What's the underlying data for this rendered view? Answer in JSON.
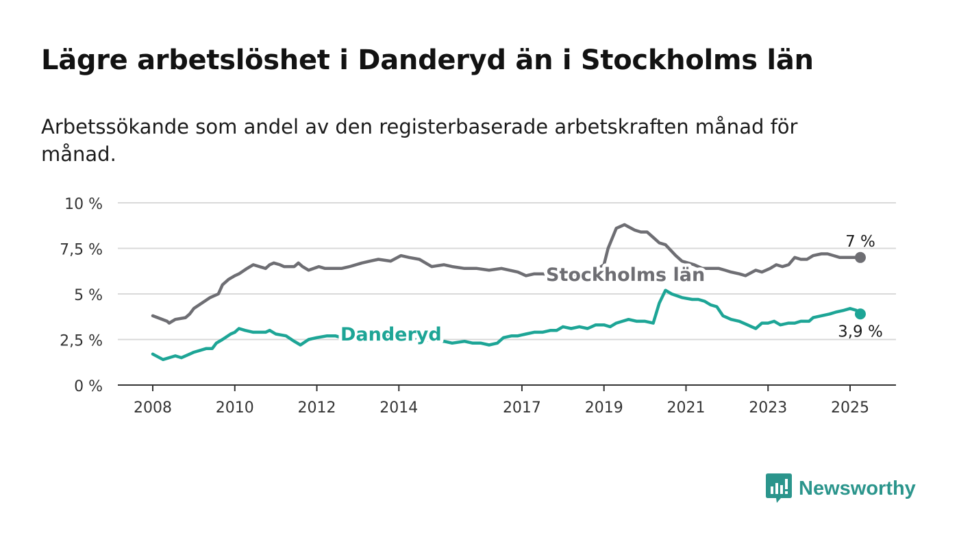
{
  "title": "Lägre arbetslöshet i Danderyd än i Stockholms län",
  "subtitle": "Arbetssökande som andel av den registerbaserade arbetskraften månad för månad.",
  "brand": {
    "name": "Newsworthy"
  },
  "colors": {
    "stockholm": "#6e6e73",
    "danderyd": "#1da596",
    "grid": "#d9d9d9",
    "axis": "#333333"
  },
  "chart_data": {
    "type": "line",
    "title": "Lägre arbetslöshet i Danderyd än i Stockholms län",
    "subtitle": "Arbetssökande som andel av den registerbaserade arbetskraften månad för månad.",
    "xlabel": "",
    "ylabel": "",
    "ylim": [
      0,
      10
    ],
    "xlim": [
      2007.25,
      2026.1
    ],
    "yticks": [
      0,
      2.5,
      5,
      7.5,
      10
    ],
    "ytick_labels": [
      "0 %",
      "2,5 %",
      "5 %",
      "7,5 %",
      "10 %"
    ],
    "xticks": [
      2008,
      2010,
      2012,
      2014,
      2017,
      2019,
      2021,
      2023,
      2025
    ],
    "xtick_labels": [
      "2008",
      "2010",
      "2012",
      "2014",
      "2017",
      "2019",
      "2021",
      "2023",
      "2025"
    ],
    "grid": true,
    "legend": "inline labels",
    "series": [
      {
        "name": "Stockholms län",
        "end_label": "7 %",
        "x": [
          2008.0,
          2008.35,
          2008.4,
          2008.55,
          2008.8,
          2008.9,
          2009.0,
          2009.4,
          2009.6,
          2009.7,
          2009.85,
          2010.0,
          2010.1,
          2010.3,
          2010.45,
          2010.75,
          2010.85,
          2010.95,
          2011.1,
          2011.2,
          2011.45,
          2011.55,
          2011.65,
          2011.8,
          2012.05,
          2012.2,
          2012.4,
          2012.6,
          2012.8,
          2013.1,
          2013.3,
          2013.5,
          2013.8,
          2014.05,
          2014.25,
          2014.5,
          2014.8,
          2015.1,
          2015.3,
          2015.6,
          2015.9,
          2016.2,
          2016.5,
          2016.7,
          2016.9,
          2017.1,
          2017.3,
          2017.5,
          2017.8,
          2017.95,
          2018.1,
          2018.25,
          2018.4,
          2018.5,
          2018.65,
          2019.0,
          2019.1,
          2019.3,
          2019.5,
          2019.75,
          2019.9,
          2020.05,
          2020.2,
          2020.35,
          2020.5,
          2020.75,
          2020.9,
          2021.2,
          2021.4,
          2021.6,
          2021.8,
          2021.95,
          2022.1,
          2022.3,
          2022.45,
          2022.7,
          2022.85,
          2023.05,
          2023.2,
          2023.35,
          2023.5,
          2023.65,
          2023.8,
          2023.95,
          2024.1,
          2024.3,
          2024.45,
          2024.6,
          2024.75,
          2025.0,
          2025.15,
          2025.25
        ],
        "y": [
          3.8,
          3.5,
          3.4,
          3.6,
          3.7,
          3.9,
          4.2,
          4.8,
          5.0,
          5.5,
          5.8,
          6.0,
          6.1,
          6.4,
          6.6,
          6.4,
          6.6,
          6.7,
          6.6,
          6.5,
          6.5,
          6.7,
          6.5,
          6.3,
          6.5,
          6.4,
          6.4,
          6.4,
          6.5,
          6.7,
          6.8,
          6.9,
          6.8,
          7.1,
          7.0,
          6.9,
          6.5,
          6.6,
          6.5,
          6.4,
          6.4,
          6.3,
          6.4,
          6.3,
          6.2,
          6.0,
          6.1,
          6.1,
          6.0,
          6.1,
          6.0,
          6.1,
          6.0,
          6.1,
          6.1,
          6.6,
          7.5,
          8.6,
          8.8,
          8.5,
          8.4,
          8.4,
          8.1,
          7.8,
          7.7,
          7.1,
          6.8,
          6.6,
          6.4,
          6.4,
          6.4,
          6.3,
          6.2,
          6.1,
          6.0,
          6.3,
          6.2,
          6.4,
          6.6,
          6.5,
          6.6,
          7.0,
          6.9,
          6.9,
          7.1,
          7.2,
          7.2,
          7.1,
          7.0,
          7.0,
          7.0,
          7.0
        ]
      },
      {
        "name": "Danderyd",
        "end_label": "3,9 %",
        "x": [
          2008.0,
          2008.25,
          2008.55,
          2008.7,
          2008.9,
          2009.0,
          2009.3,
          2009.45,
          2009.55,
          2009.7,
          2009.9,
          2010.0,
          2010.1,
          2010.25,
          2010.45,
          2010.75,
          2010.85,
          2011.0,
          2011.25,
          2011.45,
          2011.6,
          2011.8,
          2012.0,
          2012.25,
          2012.45,
          2012.6,
          2012.8,
          2013.1,
          2013.35,
          2013.6,
          2013.9,
          2014.2,
          2014.6,
          2014.9,
          2015.1,
          2015.3,
          2015.6,
          2015.8,
          2016.0,
          2016.2,
          2016.4,
          2016.55,
          2016.75,
          2016.9,
          2017.1,
          2017.3,
          2017.5,
          2017.7,
          2017.85,
          2018.0,
          2018.2,
          2018.4,
          2018.6,
          2018.8,
          2019.0,
          2019.15,
          2019.3,
          2019.45,
          2019.6,
          2019.8,
          2020.0,
          2020.2,
          2020.35,
          2020.5,
          2020.65,
          2020.9,
          2021.15,
          2021.3,
          2021.45,
          2021.6,
          2021.75,
          2021.9,
          2022.1,
          2022.3,
          2022.5,
          2022.6,
          2022.7,
          2022.85,
          2023.0,
          2023.15,
          2023.3,
          2023.5,
          2023.65,
          2023.8,
          2024.0,
          2024.1,
          2024.3,
          2024.5,
          2024.65,
          2024.85,
          2025.0,
          2025.15,
          2025.25
        ],
        "y": [
          1.7,
          1.4,
          1.6,
          1.5,
          1.7,
          1.8,
          2.0,
          2.0,
          2.3,
          2.5,
          2.8,
          2.9,
          3.1,
          3.0,
          2.9,
          2.9,
          3.0,
          2.8,
          2.7,
          2.4,
          2.2,
          2.5,
          2.6,
          2.7,
          2.7,
          2.6,
          2.7,
          3.0,
          2.8,
          2.7,
          2.6,
          2.5,
          2.5,
          2.4,
          2.4,
          2.3,
          2.4,
          2.3,
          2.3,
          2.2,
          2.3,
          2.6,
          2.7,
          2.7,
          2.8,
          2.9,
          2.9,
          3.0,
          3.0,
          3.2,
          3.1,
          3.2,
          3.1,
          3.3,
          3.3,
          3.2,
          3.4,
          3.5,
          3.6,
          3.5,
          3.5,
          3.4,
          4.5,
          5.2,
          5.0,
          4.8,
          4.7,
          4.7,
          4.6,
          4.4,
          4.3,
          3.8,
          3.6,
          3.5,
          3.3,
          3.2,
          3.1,
          3.4,
          3.4,
          3.5,
          3.3,
          3.4,
          3.4,
          3.5,
          3.5,
          3.7,
          3.8,
          3.9,
          4.0,
          4.1,
          4.2,
          4.1,
          3.9
        ]
      }
    ]
  }
}
